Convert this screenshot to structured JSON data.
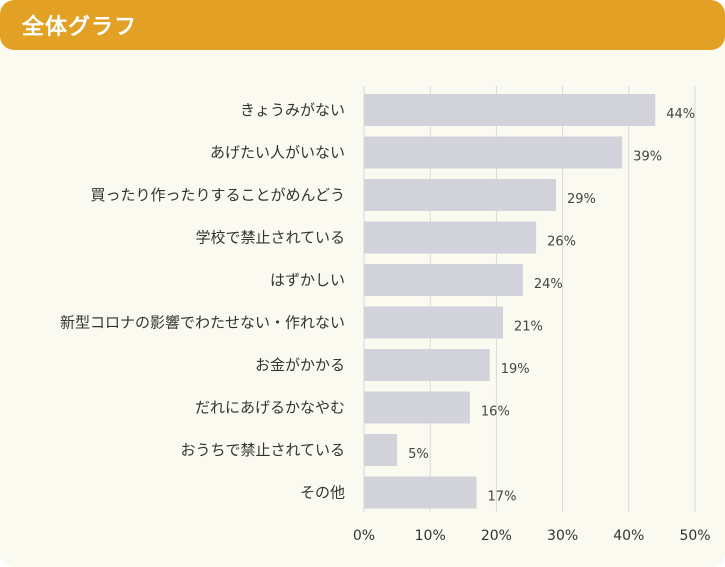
{
  "header": {
    "title": "全体グラフ"
  },
  "colors": {
    "header_bg": "#e2a024",
    "panel_bg": "#fbfaf0",
    "bar": "#d2d3da",
    "grid": "#d9d9d9"
  },
  "chart_data": {
    "type": "bar",
    "orientation": "horizontal",
    "title": "",
    "xlabel": "",
    "ylabel": "",
    "categories": [
      "きょうみがない",
      "あげたい人がいない",
      "買ったり作ったりすることがめんどう",
      "学校で禁止されている",
      "はずかしい",
      "新型コロナの影響でわたせない・作れない",
      "お金がかかる",
      "だれにあげるかなやむ",
      "おうちで禁止されている",
      "その他"
    ],
    "values": [
      44,
      39,
      29,
      26,
      24,
      21,
      19,
      16,
      5,
      17
    ],
    "value_labels": [
      "44%",
      "39%",
      "29%",
      "26%",
      "24%",
      "21%",
      "19%",
      "16%",
      "5%",
      "17%"
    ],
    "xlim": [
      0,
      50
    ],
    "xticks": [
      0,
      10,
      20,
      30,
      40,
      50
    ],
    "xtick_labels": [
      "0%",
      "10%",
      "20%",
      "30%",
      "40%",
      "50%"
    ],
    "grid": "vertical"
  }
}
